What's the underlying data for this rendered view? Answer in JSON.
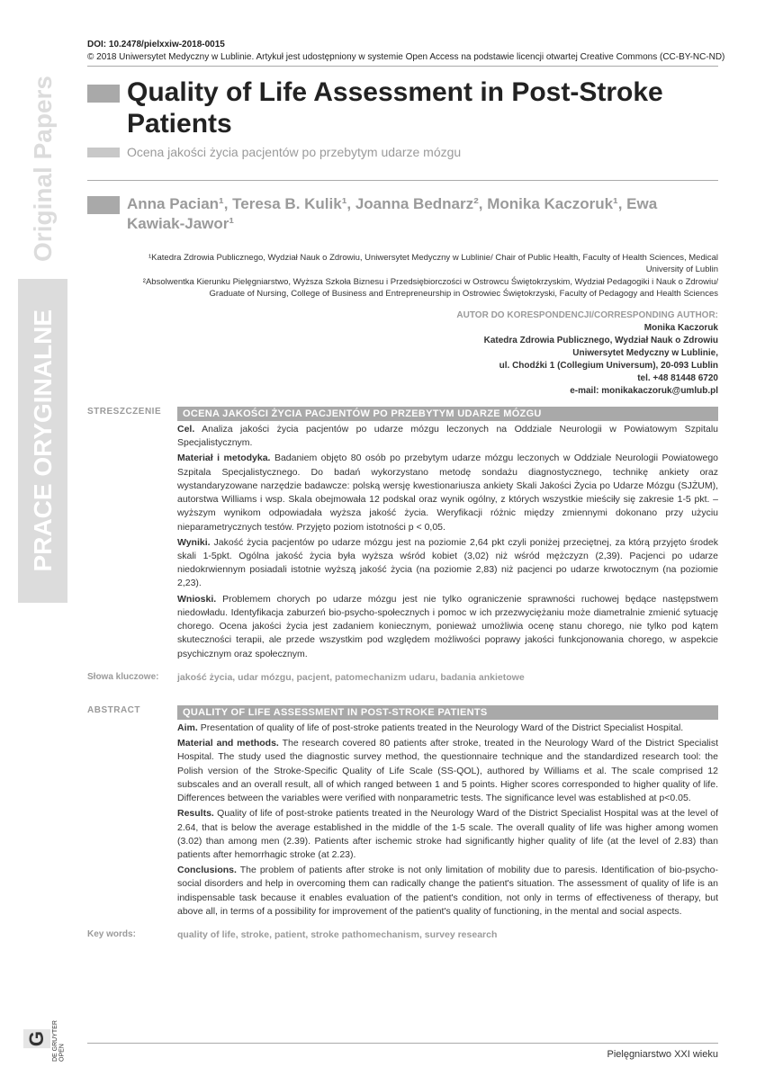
{
  "doi": "DOI: 10.2478/pielxxiw-2018-0015",
  "copyright": "© 2018 Uniwersytet Medyczny w Lublinie. Artykuł jest udostępniony w systemie Open Access na podstawie licencji otwartej Creative Commons (CC-BY-NC-ND)",
  "side_label_en": "Original Papers",
  "side_label_pl": "PRACE ORYGINALNE",
  "title": "Quality of Life Assessment in Post-Stroke Patients",
  "subtitle": "Ocena jakości życia pacjentów po przebytym udarze mózgu",
  "authors_html": "Anna Pacian¹, Teresa B. Kulik¹, Joanna Bednarz², Monika Kaczoruk¹, Ewa Kawiak-Jawor¹",
  "affiliations": {
    "a1": "¹Katedra Zdrowia Publicznego, Wydział Nauk o Zdrowiu, Uniwersytet Medyczny w Lublinie/ Chair of Public Health, Faculty of Health Sciences, Medical University of Lublin",
    "a2": "²Absolwentka Kierunku Pielęgniarstwo, Wyższa Szkoła Biznesu i Przedsiębiorczości w Ostrowcu Świętokrzyskim, Wydział Pedagogiki i Nauk o Zdrowiu/ Graduate of Nursing, College of Business and Entrepreneurship in Ostrowiec Świętokrzyski, Faculty of Pedagogy and Health Sciences"
  },
  "corresponding": {
    "label": "AUTOR DO KORESPONDENCJI/CORRESPONDING AUTHOR:",
    "name": "Monika Kaczoruk",
    "dept": "Katedra Zdrowia Publicznego, Wydział Nauk o Zdrowiu",
    "univ": "Uniwersytet Medyczny w Lublinie,",
    "addr": "ul. Chodźki 1 (Collegium Universum), 20-093 Lublin",
    "tel": "tel. +48 81448 6720",
    "email": "e-mail: monikakaczoruk@umlub.pl"
  },
  "abstract_pl": {
    "side_label": "STRESZCZENIE",
    "title": "OCENA JAKOŚCI ŻYCIA PACJENTÓW PO PRZEBYTYM UDARZE MÓZGU",
    "aim_label": "Cel.",
    "aim": "Analiza jakości życia pacjentów po udarze mózgu leczonych na Oddziale Neurologii w Powiatowym Szpitalu Specjalistycznym.",
    "methods_label": "Materiał i metodyka.",
    "methods": "Badaniem objęto 80 osób po przebytym udarze mózgu leczonych w Oddziale Neurologii Powiatowego Szpitala Specjalistycznego. Do badań wykorzystano metodę sondażu diagnostycznego, technikę ankiety oraz wystandaryzowane narzędzie badawcze: polską wersję kwestionariusza ankiety Skali Jakości Życia po Udarze Mózgu (SJŻUM), autorstwa Williams i wsp. Skala obejmowała 12 podskal oraz wynik ogólny, z których wszystkie mieściły się zakresie 1-5 pkt. – wyższym wynikom odpowiadała wyższa jakość życia. Weryfikacji różnic między zmiennymi dokonano przy użyciu nieparametrycznych testów. Przyjęto poziom istotności p < 0,05.",
    "results_label": "Wyniki.",
    "results": "Jakość życia pacjentów po udarze mózgu jest na poziomie 2,64 pkt czyli poniżej przeciętnej, za którą przyjęto środek skali 1-5pkt. Ogólna jakość życia była wyższa wśród kobiet (3,02) niż wśród mężczyzn (2,39). Pacjenci po udarze niedokrwiennym posiadali istotnie wyższą jakość życia (na poziomie 2,83) niż pacjenci po udarze krwotocznym (na poziomie 2,23).",
    "conclusions_label": "Wnioski.",
    "conclusions": "Problemem chorych po udarze mózgu jest nie tylko ograniczenie sprawności ruchowej będące następstwem niedowładu. Identyfikacja zaburzeń bio-psycho-społecznych i pomoc w ich przezwyciężaniu może diametralnie zmienić sytuację chorego. Ocena jakości życia jest zadaniem koniecznym, ponieważ umożliwia ocenę stanu chorego, nie tylko pod kątem skuteczności terapii, ale przede wszystkim pod względem możliwości poprawy jakości funkcjonowania chorego, w aspekcie psychicznym oraz społecznym.",
    "keywords_label": "Słowa kluczowe:",
    "keywords": "jakość życia, udar mózgu, pacjent, patomechanizm udaru, badania ankietowe"
  },
  "abstract_en": {
    "side_label": "ABSTRACT",
    "title": "QUALITY OF LIFE ASSESSMENT IN POST-STROKE PATIENTS",
    "aim_label": "Aim.",
    "aim": "Presentation of quality of life of post-stroke patients treated in the Neurology Ward of the District Specialist Hospital.",
    "methods_label": "Material and methods.",
    "methods": "The research covered 80 patients after stroke, treated in the Neurology Ward of the District Specialist Hospital. The study used the diagnostic survey method, the questionnaire technique and the standardized research tool: the Polish version of the Stroke-Specific Quality of Life Scale (SS-QOL), authored by Williams et al. The scale comprised 12 subscales and an overall result, all of which ranged between 1 and 5 points. Higher scores corresponded to higher quality of life. Differences between the variables were verified with nonparametric tests. The significance level was established at p<0.05.",
    "results_label": "Results.",
    "results": "Quality of life of post-stroke patients treated in the Neurology Ward of the District Specialist Hospital was at the level of 2.64, that is below the average established in the middle of the 1-5 scale. The overall quality of life was higher among women (3.02) than among men (2.39). Patients after ischemic stroke had significantly higher quality of life (at the level of 2.83) than patients after hemorrhagic stroke (at 2.23).",
    "conclusions_label": "Conclusions.",
    "conclusions": "The problem of patients after stroke is not only limitation of mobility due to paresis. Identification of bio-psycho-social disorders and help in overcoming them can radically change the patient's situation. The assessment of quality of life is an indispensable task because it enables evaluation of the patient's condition, not only in terms of effectiveness of therapy, but above all, in terms of a possibility for improvement of the patient's quality of functioning, in the mental and social aspects.",
    "keywords_label": "Key words:",
    "keywords": "quality of life, stroke, patient, stroke pathomechanism, survey research"
  },
  "footer": {
    "publisher_g": "G",
    "publisher_text": "DE GRUYTER OPEN",
    "journal": "Pielęgniarstwo XXI wieku"
  },
  "colors": {
    "gray_marker": "#a9a9a9",
    "light_gray": "#c8c8c8",
    "side_bg": "#dcdcdc",
    "text_gray": "#9a9a9a",
    "rule": "#aaaaaa",
    "body_text": "#333333"
  }
}
